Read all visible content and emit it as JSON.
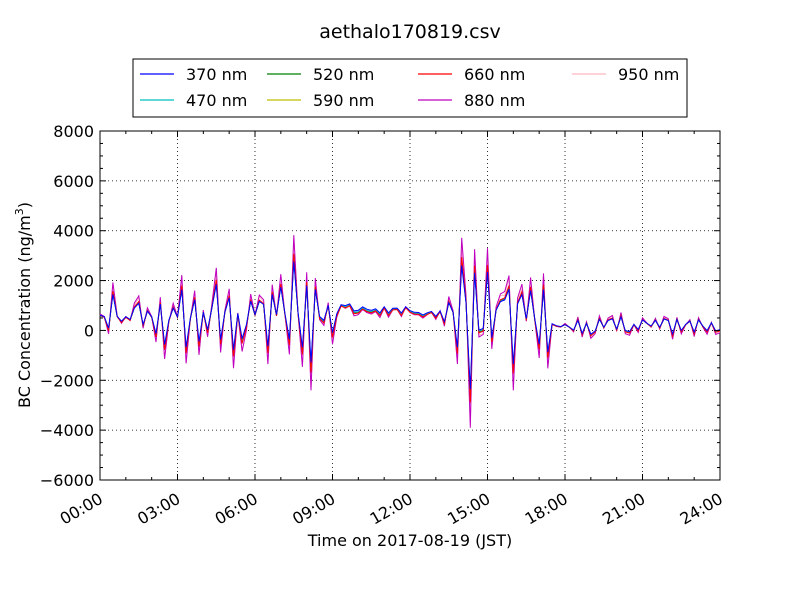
{
  "chart_data": {
    "type": "line",
    "title": "aethalo170819.csv",
    "xlabel": "Time on 2017-08-19 (JST)",
    "ylabel_main": "BC Concentration (ng/m",
    "ylabel_sup": "3",
    "ylabel_tail": ")",
    "xlim": [
      "00:00",
      "24:00"
    ],
    "ylim": [
      -6000,
      8000
    ],
    "x_ticks": [
      "00:00",
      "03:00",
      "06:00",
      "09:00",
      "12:00",
      "15:00",
      "18:00",
      "21:00",
      "24:00"
    ],
    "y_ticks": [
      "8000",
      "6000",
      "4000",
      "2000",
      "0",
      "−2000",
      "−4000",
      "−6000"
    ],
    "y_tick_values": [
      8000,
      6000,
      4000,
      2000,
      0,
      -2000,
      -4000,
      -6000
    ],
    "grid": true,
    "legend_position": "top",
    "sampling": "approximate, every 10 minutes",
    "series": [
      {
        "name": "370 nm",
        "color": "#0000ff"
      },
      {
        "name": "470 nm",
        "color": "#00bfbf"
      },
      {
        "name": "520 nm",
        "color": "#008000"
      },
      {
        "name": "590 nm",
        "color": "#bfbf00"
      },
      {
        "name": "660 nm",
        "color": "#ff0000"
      },
      {
        "name": "880 nm",
        "color": "#bf00bf"
      },
      {
        "name": "950 nm",
        "color": "#ffb6c1"
      }
    ],
    "envelope_approx": [
      {
        "x": "00:00",
        "amplitude": 1800,
        "baseline": 400
      },
      {
        "x": "03:00",
        "amplitude": 2400,
        "baseline": 400
      },
      {
        "x": "06:00",
        "amplitude": 3200,
        "baseline": 500
      },
      {
        "x": "07:30",
        "amplitude": 4500,
        "baseline": 600
      },
      {
        "x": "09:00",
        "amplitude": 2800,
        "baseline": 600
      },
      {
        "x": "09:30",
        "amplitude": 500,
        "baseline": 900
      },
      {
        "x": "12:00",
        "amplitude": 400,
        "baseline": 700
      },
      {
        "x": "13:00",
        "amplitude": 600,
        "baseline": 600
      },
      {
        "x": "14:00",
        "amplitude": 5500,
        "baseline": 400
      },
      {
        "x": "15:00",
        "amplitude": 5000,
        "baseline": 400
      },
      {
        "x": "16:30",
        "amplitude": 4000,
        "baseline": 500
      },
      {
        "x": "18:00",
        "amplitude": 800,
        "baseline": 100
      },
      {
        "x": "21:00",
        "amplitude": 700,
        "baseline": 200
      },
      {
        "x": "24:00",
        "amplitude": 800,
        "baseline": 200
      }
    ]
  }
}
